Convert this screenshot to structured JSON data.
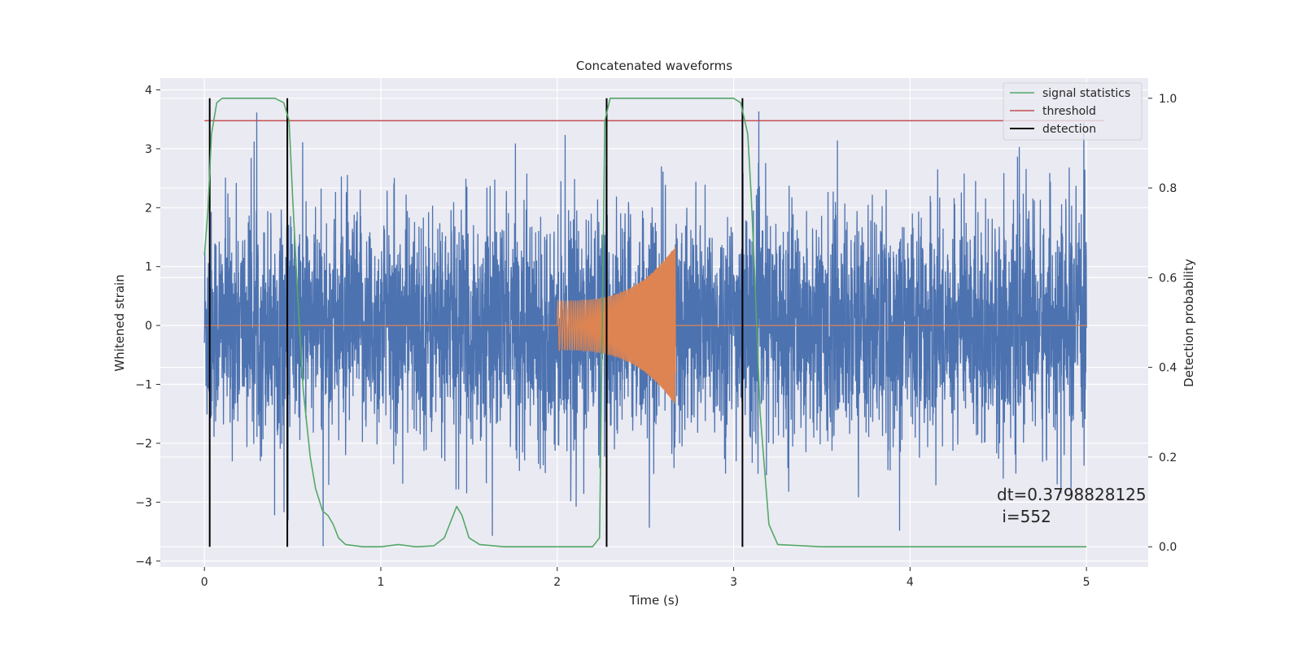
{
  "chart_data": {
    "type": "line",
    "title": "Concatenated waveforms",
    "xlabel": "Time (s)",
    "ylabel": "Whitened strain",
    "ylabel_right": "Detection probability",
    "xlim": [
      -0.25,
      5.35
    ],
    "ylim": [
      -4.1,
      4.2
    ],
    "ylim_right": [
      -0.045,
      1.045
    ],
    "x_ticks": [
      0,
      1,
      2,
      3,
      4,
      5
    ],
    "y_ticks": [
      -4,
      -3,
      -2,
      -1,
      0,
      1,
      2,
      3,
      4
    ],
    "y_ticks_right": [
      0.0,
      0.2,
      0.4,
      0.6,
      0.8,
      1.0
    ],
    "x_tick_labels": [
      "0",
      "1",
      "2",
      "3",
      "4",
      "5"
    ],
    "y_tick_labels": [
      "−4",
      "−3",
      "−2",
      "−1",
      "0",
      "1",
      "2",
      "3",
      "4"
    ],
    "y_tick_labels_right": [
      "0.0",
      "0.2",
      "0.4",
      "0.6",
      "0.8",
      "1.0"
    ],
    "grid": true,
    "legend_position": "top-right",
    "legend": [
      "signal statistics",
      "threshold",
      "detection"
    ],
    "series": [
      {
        "name": "strain",
        "color": "#4c72b0",
        "x_range": [
          0,
          5
        ],
        "description_values": {
          "typical_amplitude": 1.0,
          "max": 3.85,
          "min": -3.75
        }
      },
      {
        "name": "waveform",
        "color": "#dd8452",
        "x_range": [
          2,
          2.67
        ],
        "values": {
          "start_amplitude": 0.42,
          "end_amplitude": 1.35
        }
      },
      {
        "name": "signal statistics",
        "color": "#55a868",
        "axis": "right",
        "x": [
          0,
          0.02,
          0.04,
          0.07,
          0.1,
          0.4,
          0.45,
          0.48,
          0.5,
          0.53,
          0.56,
          0.6,
          0.63,
          0.67,
          0.7,
          0.73,
          0.76,
          0.8,
          0.9,
          1.0,
          1.1,
          1.2,
          1.3,
          1.36,
          1.4,
          1.43,
          1.46,
          1.5,
          1.56,
          1.7,
          2.0,
          2.2,
          2.24,
          2.27,
          2.3,
          2.35,
          2.5,
          3.0,
          3.04,
          3.08,
          3.1,
          3.12,
          3.15,
          3.2,
          3.25,
          3.5,
          4.0,
          4.5,
          5.0
        ],
        "values": [
          0.65,
          0.75,
          0.92,
          0.99,
          1.0,
          1.0,
          0.99,
          0.95,
          0.78,
          0.55,
          0.35,
          0.2,
          0.13,
          0.08,
          0.07,
          0.05,
          0.02,
          0.005,
          0.0,
          0.0,
          0.005,
          0.0,
          0.002,
          0.02,
          0.06,
          0.09,
          0.07,
          0.02,
          0.005,
          0.0,
          0.0,
          0.0,
          0.02,
          0.95,
          1.0,
          1.0,
          1.0,
          1.0,
          0.99,
          0.92,
          0.78,
          0.6,
          0.3,
          0.05,
          0.005,
          0.0,
          0.0,
          0.0,
          0.0
        ]
      },
      {
        "name": "threshold",
        "color": "#c44e52",
        "axis": "right",
        "x": [
          0,
          5.1
        ],
        "values": [
          0.95,
          0.95
        ]
      },
      {
        "name": "detection",
        "color": "#000000",
        "axis": "right",
        "x_values": [
          0.03,
          0.47,
          2.28,
          3.05
        ],
        "range": [
          0,
          1
        ]
      }
    ],
    "annotation": [
      "dt=0.3798828125",
      " i=552"
    ]
  }
}
